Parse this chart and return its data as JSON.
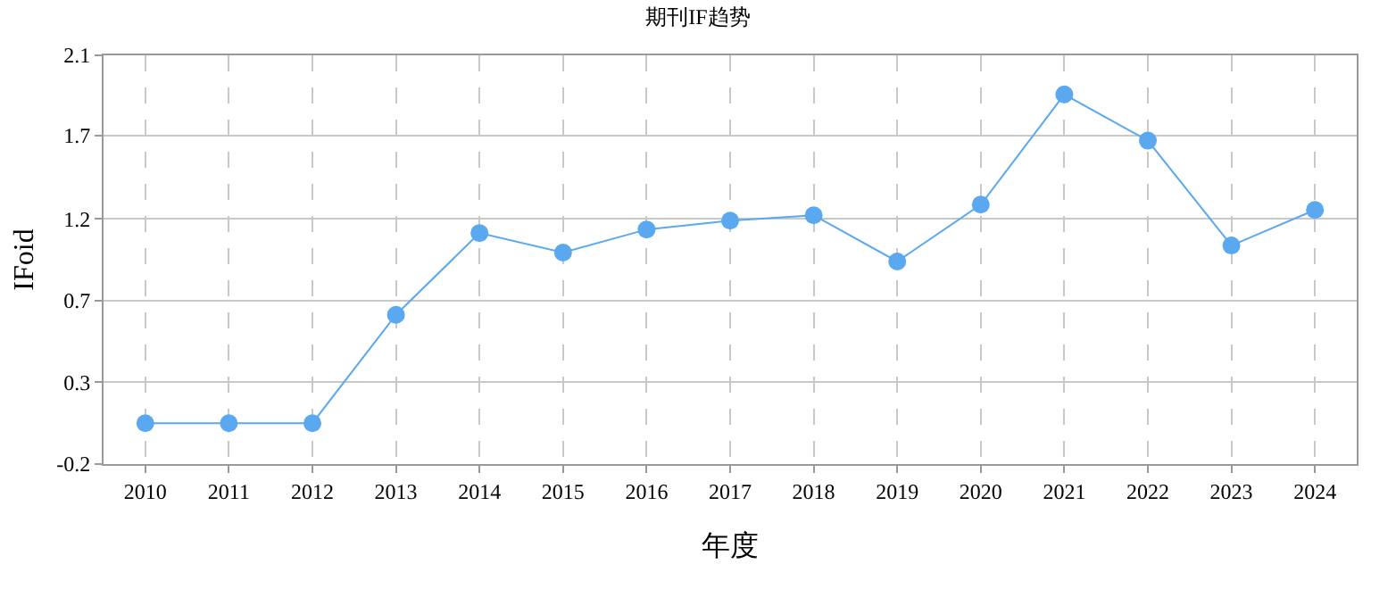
{
  "chart_data": {
    "type": "line",
    "title": "期刊IF趋势",
    "xlabel": "年度",
    "ylabel": "IFoid",
    "categories": [
      "2010",
      "2011",
      "2012",
      "2013",
      "2014",
      "2015",
      "2016",
      "2017",
      "2018",
      "2019",
      "2020",
      "2021",
      "2022",
      "2023",
      "2024"
    ],
    "series": [
      {
        "color": "#5aa8f0",
        "values": [
          0.03,
          0.03,
          0.03,
          0.64,
          1.1,
          0.99,
          1.12,
          1.17,
          1.2,
          0.94,
          1.26,
          1.88,
          1.62,
          1.03,
          1.23
        ]
      }
    ],
    "ylim": [
      -0.2,
      2.1
    ],
    "yticks": [
      {
        "value": -0.2,
        "label": "-0.2"
      },
      {
        "value": 0.26,
        "label": "0.3"
      },
      {
        "value": 0.72,
        "label": "0.7"
      },
      {
        "value": 1.18,
        "label": "1.2"
      },
      {
        "value": 1.65,
        "label": "1.7"
      },
      {
        "value": 2.1,
        "label": "2.1"
      }
    ],
    "grid": true,
    "marker": "circle",
    "line_style": "solid"
  }
}
